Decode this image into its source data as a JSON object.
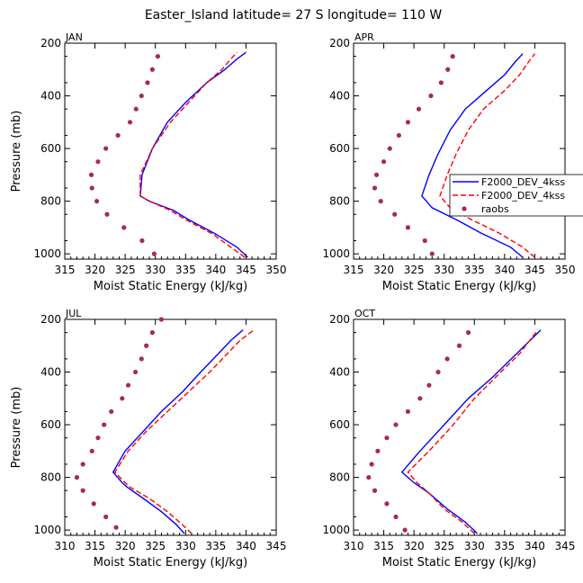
{
  "figure_title": "Easter_Island  latitude= 27 S longitude= 110 W",
  "colors": {
    "model_solid": "#0000ff",
    "model_dashed": "#ff0000",
    "raobs": "#a52a5a"
  },
  "legend": [
    {
      "label": "F2000_DEV_4kss",
      "style": "solid",
      "color": "#0000ff"
    },
    {
      "label": "F2000_DEV_4kss",
      "style": "dashed",
      "color": "#ff0000"
    },
    {
      "label": "raobs",
      "style": "marker",
      "color": "#a52a5a"
    }
  ],
  "chart_data": [
    {
      "type": "line",
      "title": "JAN",
      "xlabel": "Moist Static Energy (kJ/kg)",
      "ylabel": "Pressure (mb)",
      "xlim": [
        315,
        350
      ],
      "ylim": [
        1020,
        200
      ],
      "xticks": [
        315,
        320,
        325,
        330,
        335,
        340,
        345,
        350
      ],
      "yticks": [
        200,
        400,
        600,
        800,
        1000
      ],
      "series": [
        {
          "name": "F2000_DEV_4kss",
          "style": "solid",
          "color": "#0000ff",
          "x": [
            345.3,
            343.5,
            340.0,
            335.5,
            333.0,
            329.0,
            327.5,
            327.8,
            329.5,
            332.0,
            335.0,
            338.5,
            341.5,
            343.5,
            345.0
          ],
          "y": [
            1013,
            975,
            925,
            870,
            835,
            800,
            780,
            700,
            600,
            500,
            425,
            350,
            300,
            260,
            235
          ]
        },
        {
          "name": "F2000_DEV_4kss",
          "style": "dashed",
          "color": "#ff0000",
          "x": [
            344.8,
            342.5,
            339.5,
            335.0,
            332.5,
            329.0,
            327.5,
            327.5,
            329.5,
            332.5,
            335.5,
            338.5,
            341.0,
            342.5,
            343.5
          ],
          "y": [
            1013,
            975,
            925,
            870,
            835,
            800,
            780,
            700,
            600,
            500,
            425,
            350,
            300,
            260,
            235
          ]
        },
        {
          "name": "raobs",
          "style": "marker",
          "color": "#a52a5a",
          "x": [
            329.8,
            327.8,
            324.8,
            322.0,
            320.3,
            319.5,
            319.4,
            320.5,
            321.8,
            323.8,
            325.8,
            326.8,
            327.7,
            328.7,
            329.5,
            330.4
          ],
          "y": [
            1000,
            950,
            900,
            850,
            800,
            750,
            700,
            650,
            600,
            550,
            500,
            450,
            400,
            350,
            300,
            250
          ]
        }
      ]
    },
    {
      "type": "line",
      "title": "APR",
      "xlabel": "Moist Static Energy (kJ/kg)",
      "ylabel": "",
      "xlim": [
        315,
        350
      ],
      "ylim": [
        1020,
        200
      ],
      "xticks": [
        315,
        320,
        325,
        330,
        335,
        340,
        345,
        350
      ],
      "yticks": [
        200,
        400,
        600,
        800,
        1000
      ],
      "series": [
        {
          "name": "F2000_DEV_4kss",
          "style": "solid",
          "color": "#0000ff",
          "x": [
            343.0,
            341.0,
            336.0,
            332.0,
            328.0,
            326.3,
            327.5,
            329.0,
            331.0,
            333.5,
            337.0,
            340.0,
            341.8,
            343.0
          ],
          "y": [
            1013,
            975,
            920,
            870,
            825,
            780,
            700,
            620,
            530,
            450,
            380,
            320,
            270,
            240
          ]
        },
        {
          "name": "F2000_DEV_4kss",
          "style": "dashed",
          "color": "#ff0000",
          "x": [
            345.0,
            343.0,
            339.0,
            334.5,
            331.0,
            329.3,
            330.5,
            332.0,
            334.0,
            336.5,
            340.0,
            342.5,
            344.0,
            345.0
          ],
          "y": [
            1013,
            975,
            920,
            870,
            825,
            780,
            700,
            620,
            530,
            450,
            380,
            320,
            270,
            240
          ]
        },
        {
          "name": "raobs",
          "style": "marker",
          "color": "#a52a5a",
          "x": [
            328.0,
            326.8,
            324.0,
            321.8,
            319.5,
            318.5,
            318.8,
            320.0,
            321.0,
            322.5,
            324.0,
            325.8,
            327.8,
            329.5,
            330.6,
            331.4
          ],
          "y": [
            1000,
            950,
            900,
            850,
            800,
            750,
            700,
            650,
            600,
            550,
            500,
            450,
            400,
            350,
            300,
            250
          ]
        }
      ]
    },
    {
      "type": "line",
      "title": "JUL",
      "xlabel": "Moist Static Energy (kJ/kg)",
      "ylabel": "Pressure (mb)",
      "xlim": [
        310,
        345
      ],
      "ylim": [
        1020,
        200
      ],
      "xticks": [
        310,
        315,
        320,
        325,
        330,
        335,
        340,
        345
      ],
      "yticks": [
        200,
        400,
        600,
        800,
        1000
      ],
      "series": [
        {
          "name": "F2000_DEV_4kss",
          "style": "solid",
          "color": "#0000ff",
          "x": [
            329.8,
            328.5,
            326.0,
            323.0,
            320.5,
            319.5,
            318.0,
            320.0,
            323.0,
            326.0,
            329.5,
            332.5,
            335.0,
            337.5,
            339.5
          ],
          "y": [
            1013,
            980,
            930,
            880,
            840,
            820,
            780,
            700,
            625,
            550,
            475,
            400,
            340,
            280,
            240
          ]
        },
        {
          "name": "F2000_DEV_4kss",
          "style": "dashed",
          "color": "#ff0000",
          "x": [
            331.0,
            329.5,
            327.0,
            324.0,
            321.0,
            320.0,
            318.3,
            320.5,
            323.5,
            327.0,
            330.5,
            334.0,
            336.5,
            339.0,
            341.3
          ],
          "y": [
            1013,
            980,
            930,
            880,
            840,
            820,
            780,
            700,
            625,
            550,
            475,
            400,
            340,
            280,
            240
          ]
        },
        {
          "name": "raobs",
          "style": "marker",
          "color": "#a52a5a",
          "x": [
            318.5,
            316.8,
            314.8,
            313.0,
            312.0,
            313.0,
            314.5,
            315.5,
            316.5,
            317.7,
            319.5,
            320.5,
            321.7,
            322.7,
            323.5,
            324.5,
            326.0
          ],
          "y": [
            990,
            950,
            900,
            850,
            800,
            750,
            700,
            650,
            600,
            550,
            500,
            450,
            400,
            350,
            300,
            250,
            200
          ]
        }
      ]
    },
    {
      "type": "line",
      "title": "OCT",
      "xlabel": "Moist Static Energy (kJ/kg)",
      "ylabel": "",
      "xlim": [
        310,
        345
      ],
      "ylim": [
        1020,
        200
      ],
      "xticks": [
        310,
        315,
        320,
        325,
        330,
        335,
        340,
        345
      ],
      "yticks": [
        200,
        400,
        600,
        800,
        1000
      ],
      "series": [
        {
          "name": "F2000_DEV_4kss",
          "style": "solid",
          "color": "#0000ff",
          "x": [
            330.5,
            328.5,
            325.5,
            322.5,
            320.0,
            318.0,
            321.0,
            325.0,
            329.0,
            333.0,
            337.0,
            341.0
          ],
          "y": [
            1013,
            970,
            920,
            860,
            820,
            780,
            700,
            600,
            500,
            420,
            330,
            240
          ]
        },
        {
          "name": "F2000_DEV_4kss",
          "style": "dashed",
          "color": "#ff0000",
          "x": [
            330.0,
            328.0,
            325.0,
            322.5,
            320.5,
            319.0,
            322.5,
            326.5,
            330.0,
            333.5,
            337.5,
            340.5
          ],
          "y": [
            1013,
            970,
            920,
            860,
            820,
            780,
            700,
            600,
            500,
            420,
            330,
            240
          ]
        },
        {
          "name": "raobs",
          "style": "marker",
          "color": "#a52a5a",
          "x": [
            318.5,
            317.0,
            315.5,
            313.5,
            312.5,
            313.0,
            314.0,
            315.5,
            317.0,
            319.0,
            321.0,
            322.5,
            324.0,
            325.5,
            327.5,
            329.0
          ],
          "y": [
            1000,
            950,
            900,
            850,
            800,
            750,
            700,
            650,
            600,
            550,
            500,
            450,
            400,
            350,
            300,
            250
          ]
        }
      ]
    }
  ]
}
